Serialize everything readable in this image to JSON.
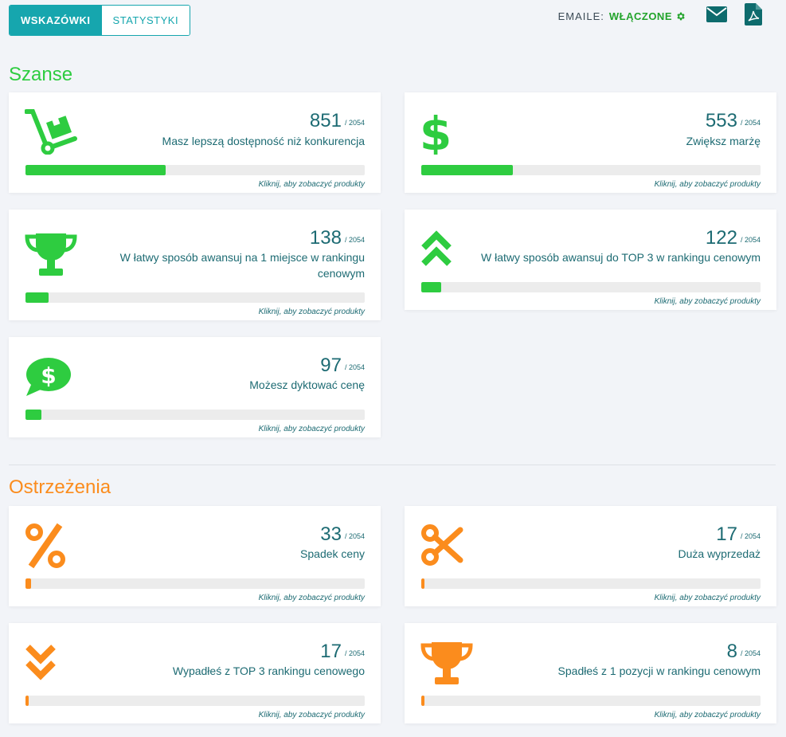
{
  "tabs": {
    "active": "WSKAZÓWKI",
    "inactive": "STATYSTYKI"
  },
  "header": {
    "email_label": "EMAILE:",
    "email_status": "WŁĄCZONE"
  },
  "sections": {
    "opportunities": "Szanse",
    "warnings": "Ostrzeżenia"
  },
  "colors": {
    "green": "#2ecc40",
    "orange": "#fb8c1d",
    "teal": "#16a6ae",
    "text": "#1d6b73"
  },
  "click_label": "Kliknij, aby zobaczyć produkty",
  "total_label": "/ 2054",
  "total": 2054,
  "cards": [
    {
      "id": "availability",
      "icon": "hand-truck-icon",
      "value": "851",
      "desc": "Masz lepszą dostępność niż konkurencja",
      "fraction": 0.414
    },
    {
      "id": "margin",
      "icon": "dollar-icon",
      "value": "553",
      "desc": "Zwiększ marżę",
      "fraction": 0.269
    },
    {
      "id": "rank1",
      "icon": "trophy-icon",
      "value": "138",
      "desc_line1": "W łatwy sposób awansuj na 1 miejsce w rankingu",
      "desc_line2": "cenowym",
      "fraction": 0.067
    },
    {
      "id": "top3",
      "icon": "double-chevron-up-icon",
      "value": "122",
      "desc": "W łatwy sposób awansuj do TOP 3 w rankingu cenowym",
      "fraction": 0.059
    },
    {
      "id": "dictate",
      "icon": "dollar-chat-icon",
      "value": "97",
      "desc": "Możesz dyktować cenę",
      "fraction": 0.047
    },
    {
      "id": "price-drop",
      "icon": "percent-icon",
      "value": "33",
      "desc": "Spadek ceny",
      "fraction": 0.016
    },
    {
      "id": "big-sale",
      "icon": "scissors-icon",
      "value": "17",
      "desc": "Duża wyprzedaż",
      "fraction": 0.008
    },
    {
      "id": "fell-top3",
      "icon": "double-chevron-down-icon",
      "value": "17",
      "desc": "Wypadłeś z TOP 3 rankingu cenowego",
      "fraction": 0.008
    },
    {
      "id": "fell-rank1",
      "icon": "trophy-icon",
      "value": "8",
      "desc": "Spadłeś z 1 pozycji w rankingu cenowym",
      "fraction": 0.004
    }
  ]
}
